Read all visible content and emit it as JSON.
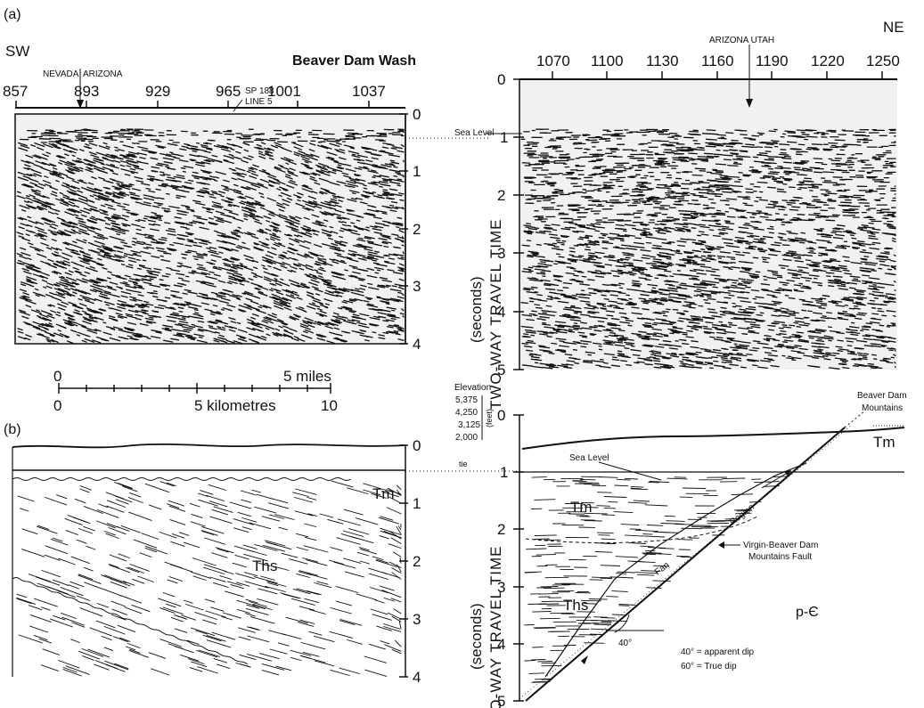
{
  "panel_a": {
    "label": "(a)",
    "left_direction": "SW",
    "right_direction": "NE",
    "location_title": "Beaver Dam Wash",
    "left_shotpoints": [
      "857",
      "893",
      "929",
      "965",
      "1001",
      "1037"
    ],
    "right_shotpoints": [
      "1070",
      "1100",
      "1130",
      "1160",
      "1190",
      "1220",
      "1250"
    ],
    "nevada_label": "NEVADA",
    "arizona_label": "ARIZONA",
    "sp_label": "SP 188",
    "line_label": "LINE 5",
    "arizona_utah_label": "ARIZONA UTAH",
    "sea_level": "Sea Level",
    "time_ticks_left": [
      "0",
      "1",
      "2",
      "3",
      "4"
    ],
    "time_ticks_right": [
      "0",
      "1",
      "2",
      "3",
      "4",
      "5"
    ]
  },
  "axis": {
    "title_units": "(seconds)",
    "title_main": "TWO-WAY TRAVEL TIME"
  },
  "scale_bar": {
    "miles_ticks": [
      "0",
      "5 miles"
    ],
    "km_ticks": [
      "0",
      "5 kilometres",
      "10"
    ]
  },
  "elevation": {
    "title": "Elevation",
    "values": [
      "5,375",
      "4,250",
      "3,125",
      "2,000"
    ],
    "unit": "(feet)"
  },
  "panel_b": {
    "label": "(b)",
    "time_ticks_left": [
      "0",
      "1",
      "2",
      "3",
      "4"
    ],
    "time_ticks_right": [
      "0",
      "1",
      "2",
      "3",
      "4",
      "5"
    ],
    "tie_label": "tie",
    "sea_level": "Sea Level",
    "tm_left": "Tm",
    "ths_left": "Ths",
    "tm_right": "Tm",
    "ths_right": "Ths",
    "tm_far": "Tm",
    "pc": "p-Є",
    "mountains": [
      "Beaver Dam",
      "Mountains"
    ],
    "fault": [
      "Virgin-Beaver Dam",
      "Mountains Fault"
    ],
    "fan": "Fan",
    "region": "Region",
    "angle": "40°",
    "dip_note": [
      "40° = apparent dip",
      "60° = True dip"
    ]
  }
}
